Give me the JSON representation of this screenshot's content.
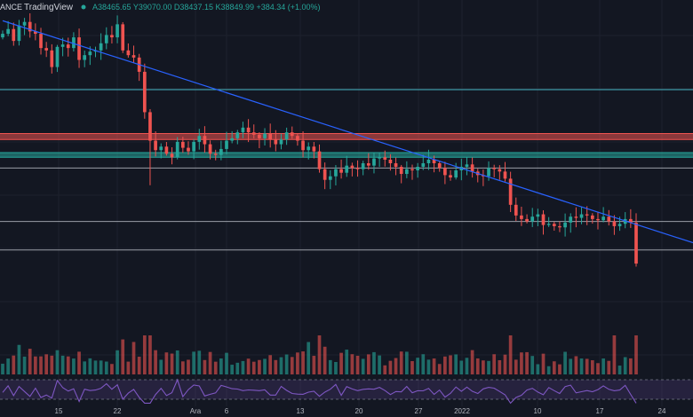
{
  "header": {
    "exchange": "ANCE",
    "brand": "TradingView",
    "ohlc": "A38465.65 Y39070.00 D38437.15 K38849.99 +384.34 (+1.00%)"
  },
  "colors": {
    "background": "#131722",
    "up": "#26a69a",
    "down": "#ef5350",
    "trendline": "#2962ff",
    "hline": "#b2b5be",
    "rsi": "#7e57c2",
    "resistance_zone": "#ef5350",
    "support_zone": "#26a69a"
  },
  "chart_data": {
    "type": "candlestick",
    "x_ticks": [
      "15",
      "22",
      "Ara",
      "6",
      "13",
      "20",
      "27",
      "2022",
      "10",
      "17",
      "24"
    ],
    "candles_close": [
      58200,
      58600,
      57600,
      58900,
      59200,
      58400,
      58200,
      57000,
      56800,
      55400,
      57100,
      57300,
      57000,
      57900,
      56000,
      56400,
      56700,
      56800,
      57400,
      58100,
      57900,
      59000,
      56800,
      56400,
      56200,
      55000,
      51600,
      49200,
      48400,
      48700,
      48100,
      47800,
      49100,
      48600,
      48300,
      49100,
      49600,
      48900,
      48100,
      48000,
      48500,
      49200,
      49400,
      49900,
      50300,
      49900,
      49700,
      49400,
      49800,
      49300,
      48900,
      49300,
      49900,
      49600,
      49200,
      48400,
      48700,
      48300,
      46800,
      45900,
      46200,
      46800,
      46500,
      47100,
      46900,
      46800,
      47300,
      47100,
      47700,
      47800,
      47600,
      47300,
      47000,
      46400,
      46800,
      46700,
      47000,
      47300,
      47600,
      47300,
      46900,
      46300,
      46100,
      46700,
      47000,
      47200,
      46600,
      46300,
      46200,
      46900,
      46800,
      46600,
      46000,
      43800,
      42900,
      42600,
      42400,
      42800,
      43000,
      42100,
      42200,
      42000,
      41900,
      42300,
      42800,
      42700,
      43000,
      42900,
      42600,
      42500,
      42800,
      42400,
      42000,
      42200,
      42600,
      42300,
      38849.99
    ],
    "series": [
      {
        "name": "Volume",
        "type": "bar"
      },
      {
        "name": "RSI",
        "type": "line"
      }
    ],
    "annotations": [
      {
        "type": "trendline",
        "from": [
          0,
          59300
        ],
        "to": [
          117,
          42000
        ]
      },
      {
        "type": "zone",
        "color": "red",
        "range": [
          49300,
          49800
        ]
      },
      {
        "type": "zone",
        "color": "green",
        "range": [
          47800,
          48200
        ]
      },
      {
        "type": "hline",
        "value": 53500
      },
      {
        "type": "hline",
        "value": 46900
      },
      {
        "type": "hline",
        "value": 42400
      },
      {
        "type": "hline",
        "value": 40000
      }
    ]
  }
}
